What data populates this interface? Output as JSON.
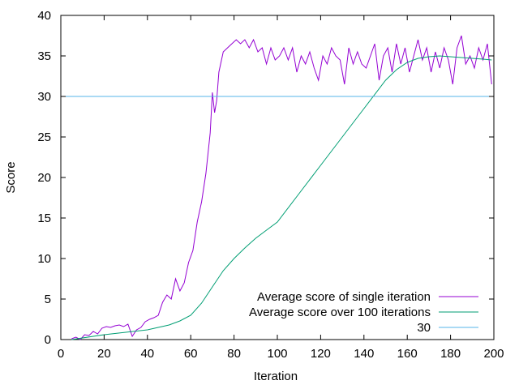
{
  "chart_data": {
    "type": "line",
    "xlabel": "Iteration",
    "ylabel": "Score",
    "xlim": [
      0,
      200
    ],
    "ylim": [
      0,
      40
    ],
    "xticks": [
      0,
      20,
      40,
      60,
      80,
      100,
      120,
      140,
      160,
      180,
      200
    ],
    "yticks": [
      0,
      5,
      10,
      15,
      20,
      25,
      30,
      35,
      40
    ],
    "grid": false,
    "legend_position": "bottom-right",
    "series": [
      {
        "name": "Average score of single iteration",
        "color": "#9400d3",
        "x": [
          5,
          7,
          9,
          11,
          13,
          15,
          17,
          19,
          21,
          23,
          25,
          27,
          29,
          31,
          33,
          35,
          37,
          39,
          41,
          43,
          45,
          47,
          49,
          51,
          53,
          55,
          57,
          59,
          61,
          63,
          65,
          67,
          69,
          70,
          71,
          72,
          73,
          75,
          77,
          79,
          81,
          83,
          85,
          87,
          89,
          91,
          93,
          95,
          97,
          99,
          101,
          103,
          105,
          107,
          109,
          111,
          113,
          115,
          117,
          119,
          121,
          123,
          125,
          127,
          129,
          131,
          133,
          135,
          137,
          139,
          141,
          143,
          145,
          147,
          149,
          151,
          153,
          155,
          157,
          159,
          161,
          163,
          165,
          167,
          169,
          171,
          173,
          175,
          177,
          179,
          181,
          183,
          185,
          187,
          189,
          191,
          193,
          195,
          197,
          199
        ],
        "y": [
          0.1,
          0.3,
          0.0,
          0.6,
          0.5,
          1.0,
          0.7,
          1.4,
          1.6,
          1.5,
          1.7,
          1.8,
          1.6,
          1.9,
          0.4,
          1.2,
          1.5,
          2.2,
          2.5,
          2.7,
          3.0,
          4.6,
          5.5,
          5.0,
          7.5,
          6.0,
          7.0,
          9.5,
          11.0,
          14.5,
          17.0,
          20.5,
          25.5,
          30.5,
          28.0,
          29.5,
          33.0,
          35.5,
          36.0,
          36.5,
          37.0,
          36.5,
          37.0,
          36.0,
          37.0,
          35.5,
          36.0,
          34.0,
          36.0,
          34.5,
          35.0,
          36.0,
          34.5,
          36.0,
          33.0,
          35.0,
          34.0,
          35.5,
          33.5,
          32.0,
          35.0,
          34.0,
          36.0,
          35.0,
          34.5,
          31.5,
          36.0,
          34.0,
          35.5,
          34.0,
          33.5,
          35.0,
          36.5,
          32.0,
          35.0,
          36.0,
          33.0,
          36.5,
          34.0,
          36.0,
          33.0,
          35.0,
          37.0,
          34.5,
          36.0,
          33.0,
          35.5,
          33.5,
          36.0,
          34.5,
          31.5,
          36.0,
          37.5,
          34.0,
          35.0,
          33.5,
          36.0,
          34.5,
          36.5,
          31.5
        ]
      },
      {
        "name": "Average score over 100 iterations",
        "color": "#009e73",
        "x": [
          5,
          10,
          20,
          30,
          40,
          50,
          55,
          60,
          65,
          70,
          75,
          80,
          85,
          90,
          95,
          100,
          110,
          120,
          130,
          140,
          150,
          155,
          160,
          165,
          170,
          175,
          180,
          185,
          190,
          195,
          199
        ],
        "y": [
          0.0,
          0.2,
          0.6,
          0.9,
          1.2,
          1.8,
          2.3,
          3.0,
          4.5,
          6.5,
          8.5,
          10.0,
          11.3,
          12.5,
          13.5,
          14.5,
          18.0,
          21.5,
          25.0,
          28.5,
          32.0,
          33.3,
          34.2,
          34.7,
          34.9,
          35.0,
          34.9,
          34.8,
          34.7,
          34.6,
          34.5
        ]
      },
      {
        "name": "30",
        "color": "#56b4e9",
        "x": [
          0,
          200
        ],
        "y": [
          30,
          30
        ]
      }
    ]
  }
}
